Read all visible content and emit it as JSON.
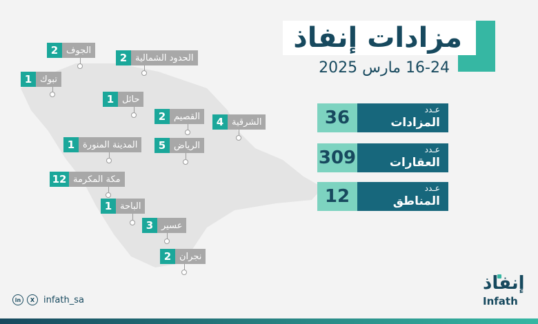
{
  "header": {
    "title": "مزادات إنفاذ",
    "date": "16-24 مارس 2025"
  },
  "stats": [
    {
      "number": "36",
      "line1": "عـدد",
      "line2": "المزادات"
    },
    {
      "number": "309",
      "line1": "عـدد",
      "line2": "العقارات"
    },
    {
      "number": "12",
      "line1": "عـدد",
      "line2": "المناطق"
    }
  ],
  "regions": [
    {
      "name": "الجوف",
      "count": "2"
    },
    {
      "name": "الحدود الشمالية",
      "count": "2"
    },
    {
      "name": "تبوك",
      "count": "1"
    },
    {
      "name": "حائل",
      "count": "1"
    },
    {
      "name": "القصيم",
      "count": "2"
    },
    {
      "name": "الشرقية",
      "count": "4"
    },
    {
      "name": "المدينة المنورة",
      "count": "1"
    },
    {
      "name": "الرياض",
      "count": "5"
    },
    {
      "name": "مكة المكرمة",
      "count": "12"
    },
    {
      "name": "الباحة",
      "count": "1"
    },
    {
      "name": "عسير",
      "count": "3"
    },
    {
      "name": "نجران",
      "count": "2"
    }
  ],
  "footer": {
    "handle": "infath_sa",
    "logo_ar": "إنفاذ",
    "logo_en": "Infath"
  },
  "colors": {
    "teal": "#36b7a3",
    "dark_blue": "#17495e",
    "label_gray": "#a8a8a8"
  }
}
